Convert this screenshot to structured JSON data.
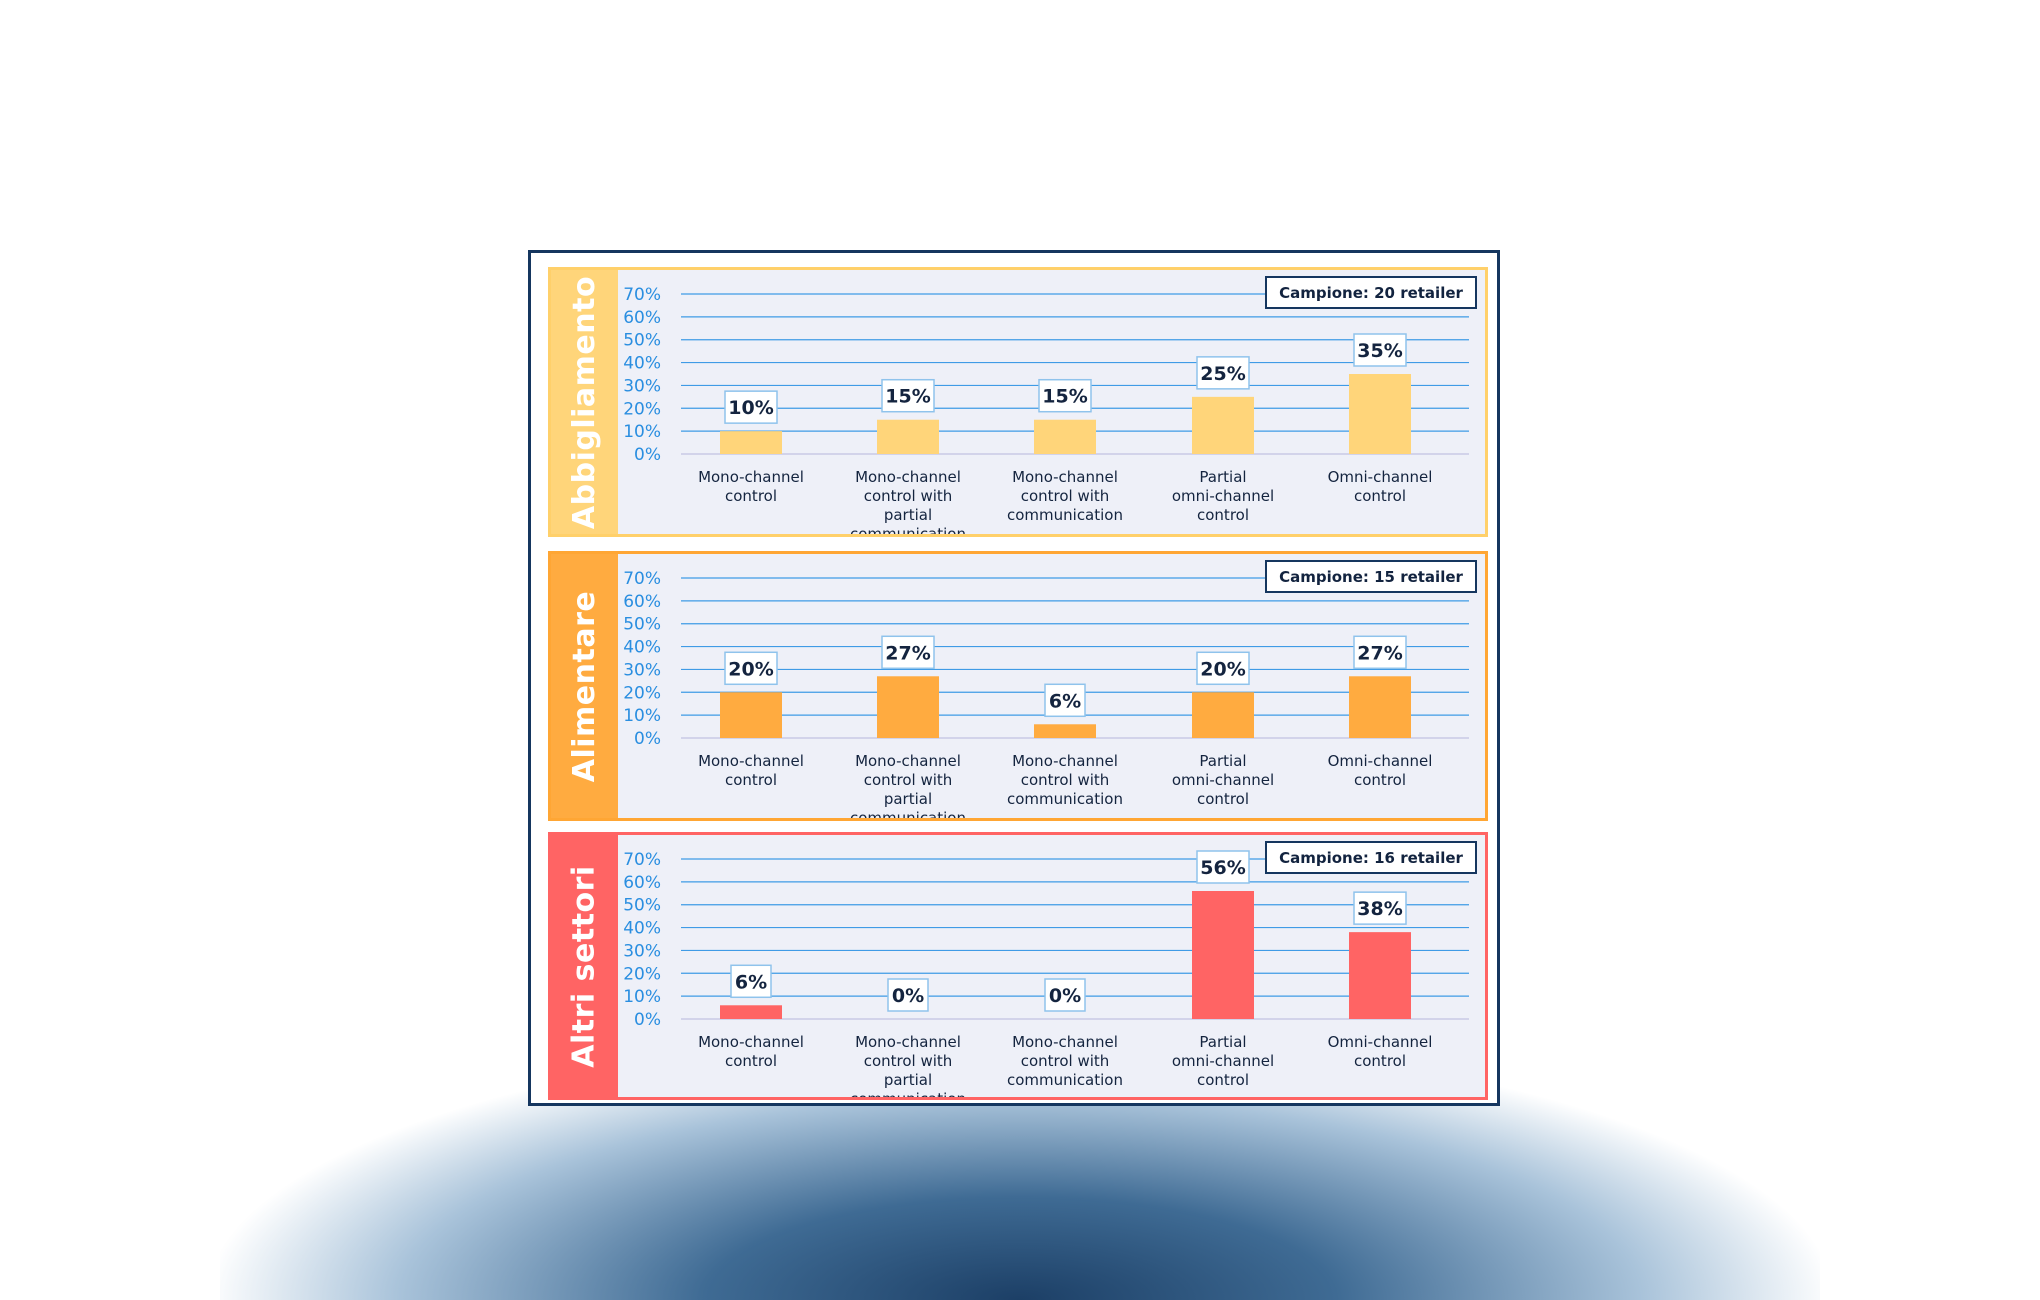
{
  "chart_data": [
    {
      "type": "bar",
      "title": "Abbigliamento",
      "sample_label": "Campione: 20 retailer",
      "categories": [
        "Mono-channel control",
        "Mono-channel control with partial communication",
        "Mono-channel control with communication",
        "Partial omni-channel control",
        "Omni-channel control"
      ],
      "values": [
        10,
        15,
        15,
        25,
        35
      ],
      "value_labels": [
        "10%",
        "15%",
        "15%",
        "25%",
        "35%"
      ],
      "yticks": [
        "0%",
        "10%",
        "20%",
        "30%",
        "40%",
        "50%",
        "60%",
        "70%"
      ],
      "ylim": [
        0,
        70
      ],
      "color": "#ffd57a",
      "border_color": "#ffd06a"
    },
    {
      "type": "bar",
      "title": "Alimentare",
      "sample_label": "Campione: 15 retailer",
      "categories": [
        "Mono-channel control",
        "Mono-channel control with partial communication",
        "Mono-channel control with communication",
        "Partial omni-channel control",
        "Omni-channel control"
      ],
      "values": [
        20,
        27,
        6,
        20,
        27
      ],
      "value_labels": [
        "20%",
        "27%",
        "6%",
        "20%",
        "27%"
      ],
      "yticks": [
        "0%",
        "10%",
        "20%",
        "30%",
        "40%",
        "50%",
        "60%",
        "70%"
      ],
      "ylim": [
        0,
        70
      ],
      "color": "#ffab40",
      "border_color": "#ffa634"
    },
    {
      "type": "bar",
      "title": "Altri settori",
      "sample_label": "Campione: 16 retailer",
      "categories": [
        "Mono-channel control",
        "Mono-channel control with partial communication",
        "Mono-channel control with communication",
        "Partial omni-channel control",
        "Omni-channel control"
      ],
      "values": [
        6,
        0,
        0,
        56,
        38
      ],
      "value_labels": [
        "6%",
        "0%",
        "0%",
        "56%",
        "38%"
      ],
      "yticks": [
        "0%",
        "10%",
        "20%",
        "30%",
        "40%",
        "50%",
        "60%",
        "70%"
      ],
      "ylim": [
        0,
        70
      ],
      "color": "#ff6464",
      "border_color": "#ff6464"
    }
  ]
}
